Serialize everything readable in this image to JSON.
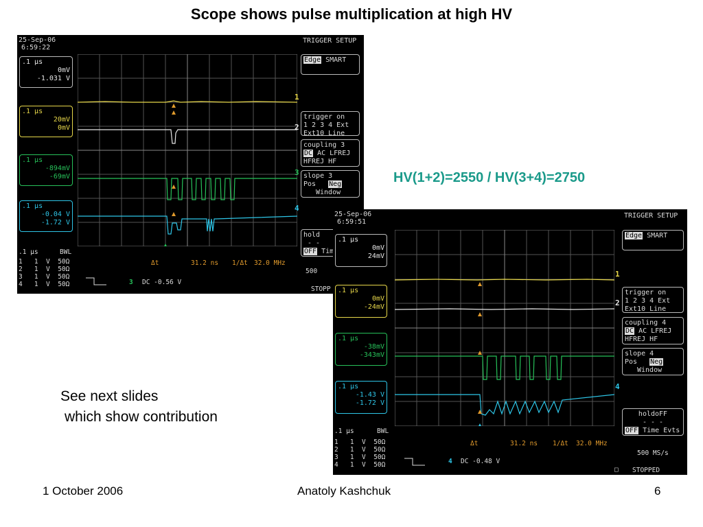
{
  "slide": {
    "title": "Scope shows pulse multiplication at high HV",
    "hv_label": "HV(1+2)=2550 / HV(3+4)=2750",
    "note_line1": "See next slides",
    "note_line2": "which show contribution",
    "footer_date": "1 October 2006",
    "footer_author": "Anatoly Kashchuk",
    "footer_page": "6"
  },
  "scope1": {
    "date": "25-Sep-06",
    "time": "6:59:22",
    "header": "TRIGGER SETUP",
    "trig_edge": "Edge",
    "trig_smart": "SMART",
    "trig_on_label": "trigger on",
    "trig_channels": "1 2 3 4 Ext",
    "trig_ext10": "Ext10 Line",
    "coupling_label": "coupling 3",
    "coupling_dc": "DC",
    "coupling_rest": "AC LFREJ",
    "coupling_hf": "HFREJ HF",
    "slope_label": "slope 3",
    "slope_pos": "Pos",
    "slope_neg": "Neg",
    "slope_window": "Window",
    "ch2": {
      "num": "2",
      "time": ".1 µs",
      "v1": "0mV",
      "v2": "-1.031 V"
    },
    "ch1": {
      "num": "1",
      "time": ".1 µs",
      "v1": "20mV",
      "v2": "0mV"
    },
    "ch3": {
      "num": "3",
      "time": ".1 µs",
      "v1": "-894mV",
      "v2": "-69mV"
    },
    "ch4": {
      "num": "4",
      "time": ".1 µs",
      "v1": "-0.04 V",
      "v2": "-1.72 V"
    },
    "timebase": ".1 µs",
    "bwl": "BWL",
    "ch_rows": [
      "1   1  V  50Ω",
      "2   1  V  50Ω",
      "3   1  V  50Ω",
      "4   1  V  50Ω"
    ],
    "delta_t_label": "Δt",
    "delta_t": "31.2 ns",
    "inv_dt_label": "1/Δt",
    "inv_dt": "32.0 MHz",
    "trig_ch": "3",
    "dc_level": "DC -0.56 V",
    "hold_label": "hold",
    "hold_off": "OFF",
    "hold_time": "Tim",
    "rate": "500",
    "stopped": "STOPP"
  },
  "scope2": {
    "date": "25-Sep-06",
    "time": "6:59:51",
    "header": "TRIGGER SETUP",
    "trig_edge": "Edge",
    "trig_smart": "SMART",
    "trig_on_label": "trigger on",
    "trig_channels": "1 2 3 4 Ext",
    "trig_ext10": "Ext10 Line",
    "coupling_label": "coupling 4",
    "coupling_dc": "DC",
    "coupling_rest": "AC LFREJ",
    "coupling_hf": "HFREJ HF",
    "slope_label": "slope 4",
    "slope_pos": "Pos",
    "slope_neg": "Neg",
    "slope_window": "Window",
    "ch2": {
      "num": "2",
      "time": ".1 µs",
      "v1": "0mV",
      "v2": "24mV"
    },
    "ch1": {
      "num": "1",
      "time": ".1 µs",
      "v1": "0mV",
      "v2": "-24mV"
    },
    "ch3": {
      "num": "3",
      "time": ".1 µs",
      "v1": "-38mV",
      "v2": "-343mV"
    },
    "ch4": {
      "num": "4",
      "time": ".1 µs",
      "v1": "-1.43 V",
      "v2": "-1.72 V"
    },
    "timebase": ".1 µs",
    "bwl": "BWL",
    "ch_rows": [
      "1   1  V  50Ω",
      "2   1  V  50Ω",
      "3   1  V  50Ω",
      "4   1  V  50Ω"
    ],
    "delta_t_label": "Δt",
    "delta_t": "31.2 ns",
    "inv_dt_label": "1/Δt",
    "inv_dt": "32.0 MHz",
    "trig_ch": "4",
    "dc_level": "DC -0.48 V",
    "holdoff_label": "holdoFF",
    "holdoff_dashes": "- - -",
    "holdoff_off": "OFF",
    "holdoff_opts": "Time Evts",
    "rate": "500 MS/s",
    "stopped": "STOPPED"
  }
}
